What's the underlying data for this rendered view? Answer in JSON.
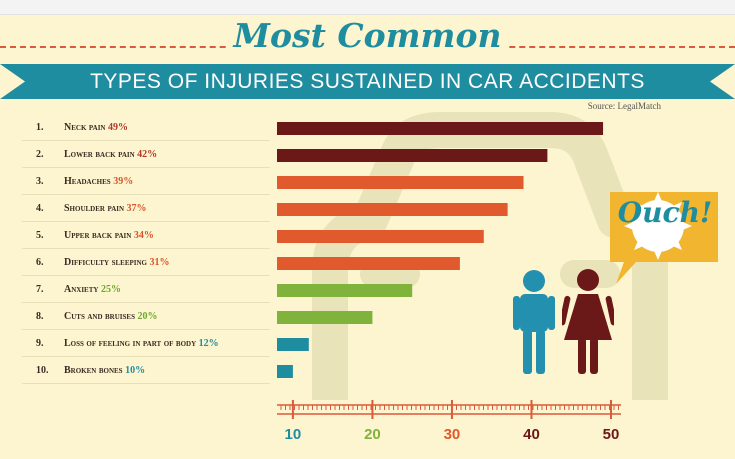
{
  "header": {
    "title_script": "Most Common",
    "banner": "TYPES OF INJURIES SUSTAINED IN CAR ACCIDENTS",
    "source": "Source: LegalMatch"
  },
  "callout": {
    "text": "Ouch!"
  },
  "colors": {
    "background": "#fcf5cf",
    "accent_teal": "#1f8da0",
    "dark_maroon": "#6b1818",
    "orange": "#e05a2d",
    "green": "#80b33c",
    "blue": "#1f8da0",
    "axis": "#d95a3c"
  },
  "items": [
    {
      "num": "1.",
      "label": "Neck pain",
      "pct": "49%"
    },
    {
      "num": "2.",
      "label": "Lower back pain",
      "pct": "42%"
    },
    {
      "num": "3.",
      "label": "Headaches",
      "pct": "39%"
    },
    {
      "num": "4.",
      "label": "Shoulder pain",
      "pct": "37%"
    },
    {
      "num": "5.",
      "label": "Upper back pain",
      "pct": "34%"
    },
    {
      "num": "6.",
      "label": "Difficulty sleeping",
      "pct": "31%"
    },
    {
      "num": "7.",
      "label": "Anxiety",
      "pct": "25%"
    },
    {
      "num": "8.",
      "label": "Cuts and bruises",
      "pct": "20%"
    },
    {
      "num": "9.",
      "label": "Loss of feeling in part of body",
      "pct": "12%"
    },
    {
      "num": "10.",
      "label": "Broken bones",
      "pct": "10%"
    }
  ],
  "chart_data": {
    "type": "bar",
    "orientation": "horizontal",
    "title": "Most Common Types of Injuries Sustained in Car Accidents",
    "categories": [
      "Neck pain",
      "Lower back pain",
      "Headaches",
      "Shoulder pain",
      "Upper back pain",
      "Difficulty sleeping",
      "Anxiety",
      "Cuts and bruises",
      "Loss of feeling in part of body",
      "Broken bones"
    ],
    "values": [
      49,
      42,
      39,
      37,
      34,
      31,
      25,
      20,
      12,
      10
    ],
    "bar_colors": [
      "#6b1818",
      "#6b1818",
      "#e05a2d",
      "#e05a2d",
      "#e05a2d",
      "#e05a2d",
      "#80b33c",
      "#80b33c",
      "#1f8da0",
      "#1f8da0"
    ],
    "pct_colors": [
      "#b03a2a",
      "#b03a2a",
      "#d9542e",
      "#d9542e",
      "#d9542e",
      "#d9542e",
      "#6da82d",
      "#6da82d",
      "#1f8da0",
      "#1f8da0"
    ],
    "xlim": [
      8,
      50
    ],
    "ticks": [
      10,
      20,
      30,
      40,
      50
    ],
    "tick_colors": [
      "#1f8da0",
      "#80b33c",
      "#e05a2d",
      "#6b1818",
      "#6b1818"
    ],
    "xlabel": "",
    "ylabel": "",
    "grid": false,
    "legend": "none"
  }
}
